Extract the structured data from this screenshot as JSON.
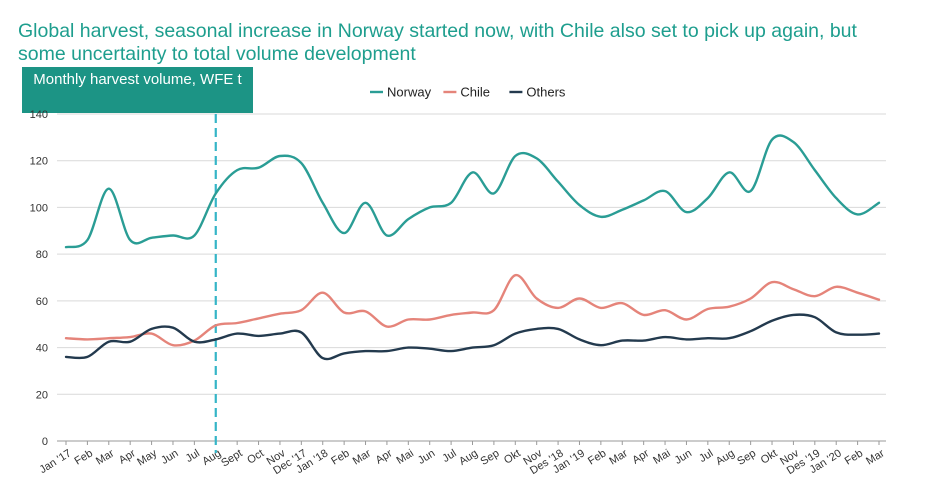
{
  "title": "Global harvest, seasonal increase in Norway started now, with Chile also set to pick up again, but some uncertainty to total volume development",
  "chart_data": {
    "type": "line",
    "title": "Global harvest, seasonal increase in Norway started now, with Chile also set to pick up again, but some uncertainty to total volume development",
    "subtitle": "Monthly harvest volume, WFE t",
    "ylabel": "",
    "xlabel": "",
    "ylim": [
      0,
      140
    ],
    "yticks": [
      0,
      20,
      40,
      60,
      80,
      100,
      120,
      140
    ],
    "grid": true,
    "legend_position": "top-center",
    "categories": [
      "Jan '17",
      "Feb",
      "Mar",
      "Apr",
      "May",
      "Jun",
      "Jul",
      "Aug",
      "Sept",
      "Oct",
      "Nov",
      "Dec '17",
      "Jan '18",
      "Feb",
      "Mar",
      "Apr",
      "Mai",
      "Jun",
      "Jul",
      "Aug",
      "Sep",
      "Okt",
      "Nov",
      "Des '18",
      "Jan '19",
      "Feb",
      "Mar",
      "Apr",
      "Mai",
      "Jun",
      "Jul",
      "Aug",
      "Sep",
      "Okt",
      "Nov",
      "Des '19",
      "Jan '20",
      "Feb",
      "Mar"
    ],
    "series": [
      {
        "name": "Norway",
        "color": "#2a9d95",
        "values": [
          83,
          86,
          108,
          86,
          87,
          88,
          88,
          106,
          116,
          117,
          122,
          119,
          102,
          89,
          102,
          88,
          95,
          100,
          102,
          115,
          106,
          122,
          121,
          111,
          101,
          96,
          99,
          103,
          107,
          98,
          104,
          115,
          107,
          129,
          128,
          116,
          104,
          97,
          102
        ]
      },
      {
        "name": "Chile",
        "color": "#e5847a",
        "values": [
          44,
          43.5,
          44,
          44.5,
          46,
          41,
          43,
          49.5,
          50.5,
          52.5,
          54.5,
          56,
          63.5,
          55,
          55.5,
          49,
          52,
          52,
          54,
          55,
          56,
          71,
          61,
          57,
          61,
          57,
          59,
          54,
          56,
          52,
          56.5,
          57.5,
          61,
          68,
          65,
          62,
          66,
          63.5,
          60.5
        ]
      },
      {
        "name": "Others",
        "color": "#233a4e",
        "values": [
          36,
          36,
          42.5,
          42.5,
          48,
          48.5,
          42.5,
          43.5,
          46,
          45,
          46,
          46.5,
          35.5,
          37.5,
          38.5,
          38.5,
          40,
          39.5,
          38.5,
          40,
          41,
          46,
          48,
          48,
          43.5,
          41,
          43,
          43,
          44.5,
          43.5,
          44,
          44,
          47,
          51.5,
          54,
          53,
          46.5,
          45.5,
          46
        ]
      }
    ],
    "annotations": [
      {
        "type": "vertical-dashed-line",
        "x": "Aug",
        "color": "#35b5c7"
      }
    ]
  }
}
